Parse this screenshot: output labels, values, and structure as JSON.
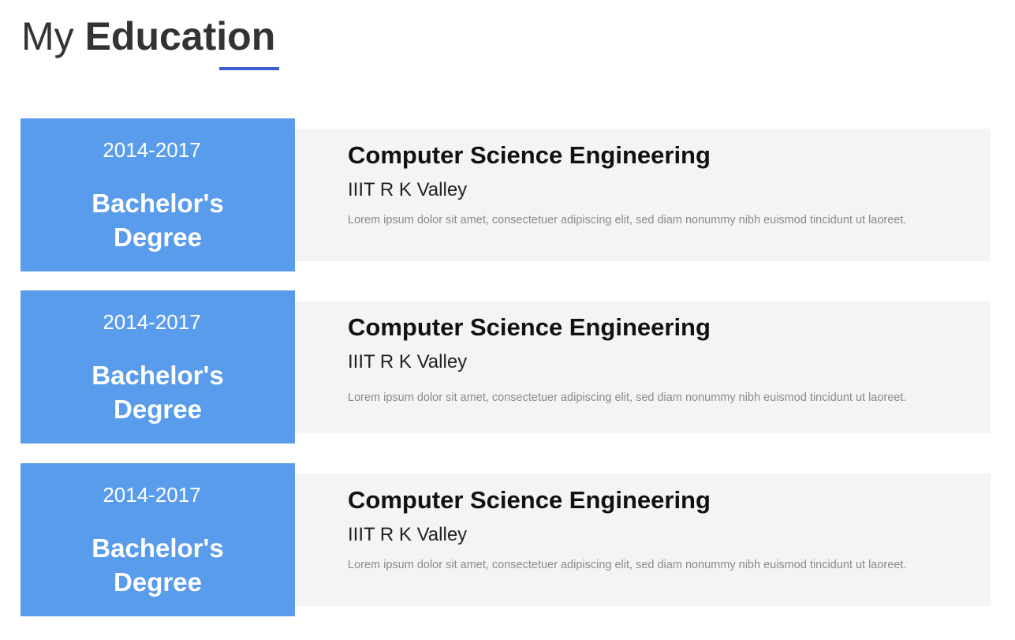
{
  "heading": {
    "light": "My",
    "bold": "Education"
  },
  "education": [
    {
      "years": "2014-2017",
      "degree_line1": "Bachelor's",
      "degree_line2": "Degree",
      "course": "Computer Science Engineering",
      "institute": "IIIT R K Valley",
      "description": "Lorem ipsum dolor sit amet, consectetuer adipiscing elit, sed diam nonummy nibh euismod tincidunt ut laoreet."
    },
    {
      "years": "2014-2017",
      "degree_line1": "Bachelor's",
      "degree_line2": "Degree",
      "course": "Computer Science Engineering",
      "institute": "IIIT R K Valley",
      "description": "Lorem ipsum dolor sit amet, consectetuer adipiscing elit, sed diam nonummy nibh euismod tincidunt ut laoreet."
    },
    {
      "years": "2014-2017",
      "degree_line1": "Bachelor's",
      "degree_line2": "Degree",
      "course": "Computer Science Engineering",
      "institute": "IIIT R K Valley",
      "description": "Lorem ipsum dolor sit amet, consectetuer adipiscing elit, sed diam nonummy nibh euismod tincidunt ut laoreet."
    }
  ],
  "colors": {
    "accent": "#3a5fcd",
    "degree_box": "#5a9cec",
    "detail_box": "#f4f4f4"
  }
}
